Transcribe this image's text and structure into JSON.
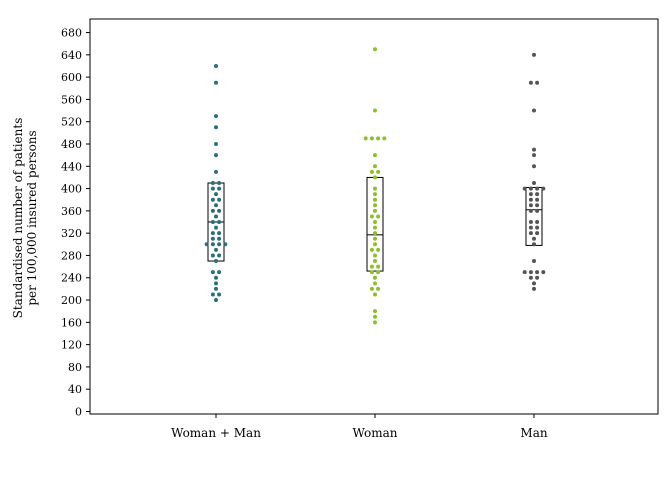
{
  "chart_data": {
    "type": "scatter",
    "subtype": "dot strip plot with box (median and interquartile range)",
    "title": "",
    "ylabel_lines": [
      "Standardised number of patients",
      "per 100,000 insured persons"
    ],
    "xlabel": "",
    "categories": [
      "Woman + Man",
      "Woman",
      "Man"
    ],
    "ylim": [
      0,
      700
    ],
    "yticks": [
      0,
      40,
      80,
      120,
      160,
      200,
      240,
      280,
      320,
      360,
      400,
      440,
      480,
      520,
      560,
      600,
      640,
      680
    ],
    "grid": false,
    "legend": "none",
    "series": [
      {
        "category": "Woman + Man",
        "color": "#2a6f79",
        "box": {
          "q1": 270,
          "median": 340,
          "q3": 410
        },
        "points": [
          [
            0,
            620
          ],
          [
            0,
            590
          ],
          [
            0,
            530
          ],
          [
            0,
            510
          ],
          [
            0,
            480
          ],
          [
            0,
            460
          ],
          [
            0,
            430
          ],
          [
            -1,
            410
          ],
          [
            1,
            410
          ],
          [
            -1,
            400
          ],
          [
            1,
            400
          ],
          [
            0,
            390
          ],
          [
            -1,
            380
          ],
          [
            1,
            380
          ],
          [
            0,
            370
          ],
          [
            -1,
            360
          ],
          [
            1,
            360
          ],
          [
            0,
            350
          ],
          [
            -1,
            340
          ],
          [
            1,
            340
          ],
          [
            0,
            330
          ],
          [
            -1,
            320
          ],
          [
            1,
            320
          ],
          [
            -1,
            310
          ],
          [
            1,
            310
          ],
          [
            -3,
            300
          ],
          [
            -1,
            300
          ],
          [
            1,
            300
          ],
          [
            3,
            300
          ],
          [
            0,
            290
          ],
          [
            -1,
            280
          ],
          [
            1,
            280
          ],
          [
            0,
            270
          ],
          [
            -1,
            250
          ],
          [
            1,
            250
          ],
          [
            0,
            240
          ],
          [
            0,
            230
          ],
          [
            0,
            220
          ],
          [
            -1,
            210
          ],
          [
            1,
            210
          ],
          [
            0,
            200
          ]
        ]
      },
      {
        "category": "Woman",
        "color": "#8cbf2a",
        "box": {
          "q1": 252,
          "median": 317,
          "q3": 420
        },
        "points": [
          [
            0,
            650
          ],
          [
            0,
            540
          ],
          [
            -3,
            490
          ],
          [
            -1,
            490
          ],
          [
            1,
            490
          ],
          [
            3,
            490
          ],
          [
            0,
            460
          ],
          [
            0,
            440
          ],
          [
            -1,
            430
          ],
          [
            1,
            430
          ],
          [
            0,
            420
          ],
          [
            0,
            400
          ],
          [
            0,
            390
          ],
          [
            0,
            380
          ],
          [
            0,
            370
          ],
          [
            0,
            360
          ],
          [
            -1,
            350
          ],
          [
            1,
            350
          ],
          [
            0,
            340
          ],
          [
            0,
            330
          ],
          [
            0,
            320
          ],
          [
            0,
            310
          ],
          [
            0,
            300
          ],
          [
            -1,
            290
          ],
          [
            1,
            290
          ],
          [
            0,
            280
          ],
          [
            0,
            270
          ],
          [
            -1,
            260
          ],
          [
            1,
            260
          ],
          [
            -1,
            250
          ],
          [
            1,
            250
          ],
          [
            0,
            240
          ],
          [
            0,
            230
          ],
          [
            -1,
            220
          ],
          [
            1,
            220
          ],
          [
            0,
            210
          ],
          [
            0,
            180
          ],
          [
            0,
            170
          ],
          [
            0,
            160
          ]
        ]
      },
      {
        "category": "Man",
        "color": "#555555",
        "box": {
          "q1": 298,
          "median": 362,
          "q3": 402
        },
        "points": [
          [
            0,
            640
          ],
          [
            -1,
            590
          ],
          [
            1,
            590
          ],
          [
            0,
            540
          ],
          [
            0,
            470
          ],
          [
            0,
            460
          ],
          [
            0,
            440
          ],
          [
            0,
            410
          ],
          [
            -3,
            400
          ],
          [
            -1,
            400
          ],
          [
            1,
            400
          ],
          [
            3,
            400
          ],
          [
            -1,
            390
          ],
          [
            1,
            390
          ],
          [
            -1,
            380
          ],
          [
            1,
            380
          ],
          [
            -1,
            370
          ],
          [
            1,
            370
          ],
          [
            -1,
            360
          ],
          [
            1,
            360
          ],
          [
            -1,
            340
          ],
          [
            1,
            340
          ],
          [
            -1,
            330
          ],
          [
            1,
            330
          ],
          [
            -1,
            320
          ],
          [
            1,
            320
          ],
          [
            0,
            310
          ],
          [
            0,
            300
          ],
          [
            0,
            270
          ],
          [
            -3,
            250
          ],
          [
            -1,
            250
          ],
          [
            1,
            250
          ],
          [
            3,
            250
          ],
          [
            -1,
            240
          ],
          [
            1,
            240
          ],
          [
            0,
            230
          ],
          [
            0,
            220
          ]
        ]
      }
    ]
  }
}
